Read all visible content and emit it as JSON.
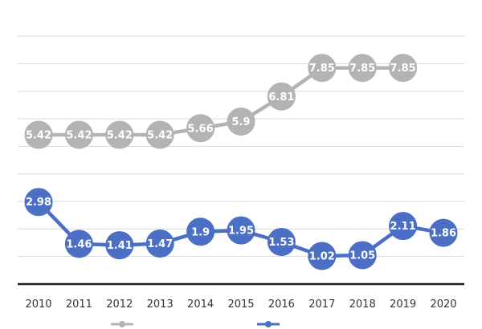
{
  "chart_data": {
    "type": "line",
    "title": "",
    "xlabel": "",
    "ylabel": "",
    "categories": [
      "2010",
      "2011",
      "2012",
      "2013",
      "2014",
      "2015",
      "2016",
      "2017",
      "2018",
      "2019",
      "2020"
    ],
    "ylim": [
      0,
      9.5
    ],
    "grid": true,
    "legend_position": "bottom",
    "series": [
      {
        "name": "",
        "color": "#b3b3b3",
        "values": [
          5.42,
          5.42,
          5.42,
          5.42,
          5.66,
          5.9,
          6.81,
          7.85,
          7.85,
          7.85,
          null
        ],
        "labels": [
          "5.42",
          "5.42",
          "5.42",
          "5.42",
          "5.66",
          "5.9",
          "6.81",
          "7.85",
          "7.85",
          "7.85",
          ""
        ]
      },
      {
        "name": "",
        "color": "#4a6fc4",
        "values": [
          2.98,
          1.46,
          1.41,
          1.47,
          1.9,
          1.95,
          1.53,
          1.02,
          1.05,
          2.11,
          1.86
        ],
        "labels": [
          "2.98",
          "1.46",
          "1.41",
          "1.47",
          "1.9",
          "1.95",
          "1.53",
          "1.02",
          "1.05",
          "2.11",
          "1.86"
        ]
      }
    ]
  }
}
